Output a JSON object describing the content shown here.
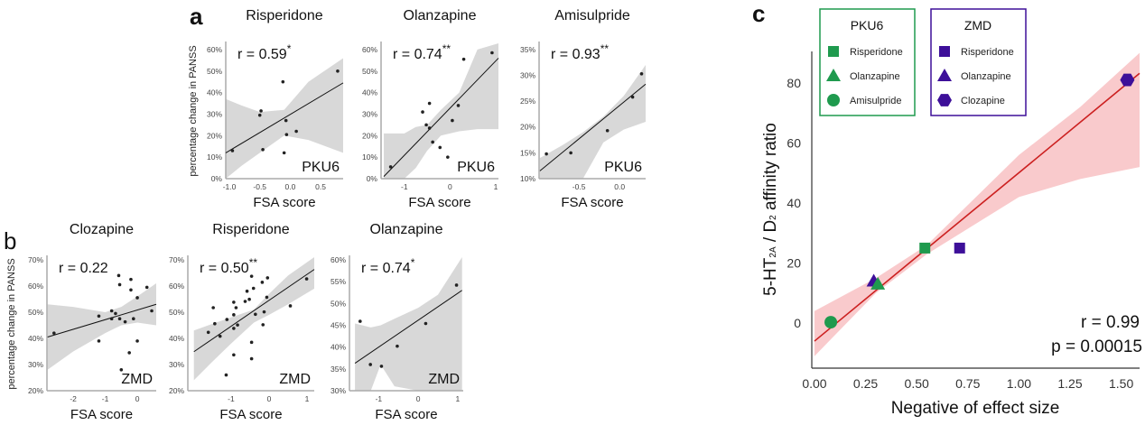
{
  "panel_letters": {
    "a": "a",
    "b": "b",
    "c": "c"
  },
  "shared": {
    "ylabel": "percentage change in PANSS",
    "xlabel": "FSA score"
  },
  "chart_data": [
    {
      "id": "a1",
      "type": "scatter",
      "title": "Risperidone",
      "r_label": "r = 0.59",
      "stars": "*",
      "cohort": "PKU6",
      "xlim": [
        -1.06,
        0.87
      ],
      "ylim": [
        0,
        62.9
      ],
      "xticks": [
        -1,
        -0.5,
        0,
        0.5
      ],
      "xtick_labels": [
        "-1.0",
        "-0.5",
        "0.0",
        "0.5"
      ],
      "yticks": [
        0,
        10,
        20,
        30,
        40,
        50,
        60
      ],
      "ytick_labels": [
        "0%",
        "10%",
        "20%",
        "30%",
        "40%",
        "50%",
        "60%"
      ],
      "points": [
        [
          -0.95,
          13
        ],
        [
          -0.5,
          29.5
        ],
        [
          -0.48,
          31.5
        ],
        [
          -0.45,
          13.5
        ],
        [
          -0.12,
          45
        ],
        [
          -0.07,
          27
        ],
        [
          -0.1,
          12
        ],
        [
          -0.06,
          20.5
        ],
        [
          0.1,
          22
        ],
        [
          0.78,
          50
        ]
      ],
      "fit": [
        [
          -1.06,
          12
        ],
        [
          0.87,
          44.5
        ]
      ],
      "ci_band": [
        [
          -1.06,
          0,
          37
        ],
        [
          -0.8,
          6,
          34
        ],
        [
          -0.5,
          12,
          31
        ],
        [
          -0.1,
          20,
          32
        ],
        [
          0.3,
          18,
          45
        ],
        [
          0.87,
          12,
          56
        ]
      ]
    },
    {
      "id": "a2",
      "type": "scatter",
      "title": "Olanzapine",
      "r_label": "r = 0.74",
      "stars": "**",
      "cohort": "PKU6",
      "xlim": [
        -1.51,
        1.06
      ],
      "ylim": [
        0,
        62.9
      ],
      "xticks": [
        -1,
        0,
        1
      ],
      "xtick_labels": [
        "-1",
        "0",
        "1"
      ],
      "yticks": [
        0,
        10,
        20,
        30,
        40,
        50,
        60
      ],
      "ytick_labels": [
        "0%",
        "10%",
        "20%",
        "30%",
        "40%",
        "50%",
        "60%"
      ],
      "points": [
        [
          -1.3,
          5.5
        ],
        [
          -0.6,
          31
        ],
        [
          -0.45,
          35
        ],
        [
          -0.52,
          25
        ],
        [
          -0.45,
          23.5
        ],
        [
          -0.38,
          17
        ],
        [
          -0.22,
          14.5
        ],
        [
          -0.05,
          10
        ],
        [
          0.05,
          27
        ],
        [
          0.18,
          34
        ],
        [
          0.3,
          55.5
        ],
        [
          0.92,
          58.5
        ]
      ],
      "fit": [
        [
          -1.45,
          1
        ],
        [
          1.06,
          56
        ]
      ],
      "ci_band": [
        [
          -1.45,
          0,
          21
        ],
        [
          -1.0,
          0,
          21
        ],
        [
          -0.75,
          5,
          24
        ],
        [
          -0.5,
          13,
          25
        ],
        [
          -0.2,
          20,
          32
        ],
        [
          0.2,
          22,
          40
        ],
        [
          0.6,
          23,
          60
        ],
        [
          1.06,
          23,
          62.9
        ]
      ]
    },
    {
      "id": "a3",
      "type": "scatter",
      "title": "Amisulpride",
      "r_label": "r = 0.93",
      "stars": "**",
      "cohort": "PKU6",
      "xlim": [
        -0.99,
        0.32
      ],
      "ylim": [
        10,
        36.2
      ],
      "xticks": [
        -0.5,
        0
      ],
      "xtick_labels": [
        "-0.5",
        "0.0"
      ],
      "yticks": [
        10,
        15,
        20,
        25,
        30,
        35
      ],
      "ytick_labels": [
        "10%",
        "15%",
        "20%",
        "25%",
        "30%",
        "35%"
      ],
      "points": [
        [
          -0.9,
          14.8
        ],
        [
          -0.6,
          15
        ],
        [
          -0.15,
          19.3
        ],
        [
          0.16,
          25.8
        ],
        [
          0.27,
          30.3
        ]
      ],
      "fit": [
        [
          -0.98,
          11.5
        ],
        [
          0.32,
          28.3
        ]
      ],
      "ci_band": [
        [
          -0.98,
          10,
          14
        ],
        [
          -0.7,
          10,
          16.5
        ],
        [
          -0.45,
          10,
          19
        ],
        [
          -0.2,
          17,
          22
        ],
        [
          0.05,
          19.5,
          26
        ],
        [
          0.32,
          21,
          32
        ]
      ]
    },
    {
      "id": "b1",
      "type": "scatter",
      "title": "Clozapine",
      "r_label": "r = 0.22",
      "stars": "",
      "cohort": "ZMD",
      "xlim": [
        -2.82,
        0.59
      ],
      "ylim": [
        20,
        71
      ],
      "xticks": [
        -2,
        -1,
        0
      ],
      "xtick_labels": [
        "-2",
        "-1",
        "0"
      ],
      "yticks": [
        20,
        30,
        40,
        50,
        60,
        70
      ],
      "ytick_labels": [
        "20%",
        "30%",
        "40%",
        "50%",
        "60%",
        "70%"
      ],
      "points": [
        [
          -2.6,
          42
        ],
        [
          -1.2,
          48.5
        ],
        [
          -1.2,
          39
        ],
        [
          -0.8,
          50.5
        ],
        [
          -0.8,
          47.5
        ],
        [
          -0.68,
          49.5
        ],
        [
          -0.58,
          64
        ],
        [
          -0.55,
          60.5
        ],
        [
          -0.55,
          47.5
        ],
        [
          -0.5,
          28
        ],
        [
          -0.38,
          46.3
        ],
        [
          -0.25,
          34.5
        ],
        [
          -0.2,
          62.5
        ],
        [
          -0.2,
          58.5
        ],
        [
          -0.12,
          47.5
        ],
        [
          0,
          55.5
        ],
        [
          0,
          39
        ],
        [
          0.3,
          59.5
        ],
        [
          0.45,
          50.5
        ]
      ],
      "fit": [
        [
          -2.8,
          40.5
        ],
        [
          0.59,
          53
        ]
      ],
      "ci_band": [
        [
          -2.8,
          28,
          53
        ],
        [
          -2,
          35,
          52
        ],
        [
          -1,
          42,
          50
        ],
        [
          -0.5,
          45,
          52
        ],
        [
          0,
          46,
          56
        ],
        [
          0.59,
          45,
          61
        ]
      ]
    },
    {
      "id": "b2",
      "type": "scatter",
      "title": "Risperidone",
      "r_label": "r = 0.50",
      "stars": "**",
      "cohort": "ZMD",
      "xlim": [
        -2.14,
        1.19
      ],
      "ylim": [
        20,
        71
      ],
      "xticks": [
        -1,
        0,
        1
      ],
      "xtick_labels": [
        "-1",
        "0",
        "1"
      ],
      "yticks": [
        20,
        30,
        40,
        50,
        60,
        70
      ],
      "ytick_labels": [
        "20%",
        "30%",
        "40%",
        "50%",
        "60%",
        "70%"
      ],
      "points": [
        [
          -1.6,
          42.3
        ],
        [
          -1.47,
          51.7
        ],
        [
          -1.43,
          45.6
        ],
        [
          -1.29,
          40.8
        ],
        [
          -1.11,
          47.2
        ],
        [
          -0.93,
          53.8
        ],
        [
          -0.93,
          49
        ],
        [
          -0.93,
          43.8
        ],
        [
          -0.93,
          33.7
        ],
        [
          -0.87,
          51.7
        ],
        [
          -0.83,
          45.1
        ],
        [
          -1.13,
          26
        ],
        [
          -0.63,
          54.1
        ],
        [
          -0.58,
          58
        ],
        [
          -0.52,
          54.9
        ],
        [
          -0.46,
          63.7
        ],
        [
          -0.41,
          59.1
        ],
        [
          -0.46,
          38.5
        ],
        [
          -0.46,
          32.2
        ],
        [
          -0.36,
          49.2
        ],
        [
          -0.18,
          61.4
        ],
        [
          -0.16,
          45.2
        ],
        [
          -0.13,
          50.1
        ],
        [
          -0.06,
          55.7
        ],
        [
          -0.04,
          63.1
        ],
        [
          0.56,
          52.4
        ],
        [
          0.99,
          62.7
        ]
      ],
      "fit": [
        [
          -1.98,
          34.9
        ],
        [
          1.19,
          66.3
        ]
      ],
      "ci_band": [
        [
          -1.98,
          24,
          43
        ],
        [
          -1.5,
          31,
          45.5
        ],
        [
          -1,
          38,
          48
        ],
        [
          -0.4,
          46,
          51
        ],
        [
          0,
          49,
          57
        ],
        [
          0.5,
          53,
          64
        ],
        [
          1.19,
          59,
          71
        ]
      ]
    },
    {
      "id": "b3",
      "type": "scatter",
      "title": "Olanzapine",
      "r_label": "r = 0.74",
      "stars": "*",
      "cohort": "ZMD",
      "xlim": [
        -1.74,
        1.14
      ],
      "ylim": [
        30,
        60.6
      ],
      "xticks": [
        -1,
        0,
        1
      ],
      "xtick_labels": [
        "-1",
        "0",
        "1"
      ],
      "yticks": [
        30,
        35,
        40,
        45,
        50,
        55,
        60
      ],
      "ytick_labels": [
        "30%",
        "35%",
        "40%",
        "45%",
        "50%",
        "55%",
        "60%"
      ],
      "points": [
        [
          -1.47,
          45.9
        ],
        [
          -1.21,
          36
        ],
        [
          -0.93,
          35.6
        ],
        [
          -0.53,
          40.2
        ],
        [
          0.19,
          45.4
        ],
        [
          0.97,
          54.2
        ]
      ],
      "fit": [
        [
          -1.6,
          36.3
        ],
        [
          1.11,
          53
        ]
      ],
      "ci_band": [
        [
          -1.6,
          30,
          45.4
        ],
        [
          -1.2,
          30,
          44.5
        ],
        [
          -0.95,
          36,
          45
        ],
        [
          -0.6,
          31,
          46.5
        ],
        [
          0,
          30,
          49
        ],
        [
          0.5,
          30,
          52
        ],
        [
          1.11,
          30,
          60.6
        ]
      ]
    },
    {
      "id": "c",
      "type": "scatter",
      "cohort": "",
      "xlabel": "Negative of effect size",
      "ylabel_parts": [
        "5-HT",
        "2A",
        " / D",
        "2",
        "  affinity ratio"
      ],
      "xlim": [
        -0.013,
        1.59
      ],
      "ylim": [
        -15,
        90.5
      ],
      "xticks": [
        0,
        0.25,
        0.5,
        0.75,
        1,
        1.25,
        1.5
      ],
      "xtick_labels": [
        "0.00",
        "0.25",
        "0.50",
        "0.75",
        "1.00",
        "1.25",
        "1.50"
      ],
      "yticks": [
        0,
        20,
        40,
        60,
        80
      ],
      "ytick_labels": [
        "0",
        "20",
        "40",
        "60",
        "80"
      ],
      "r_label": "r = 0.99",
      "p_label": "p = 0.00015",
      "fit": [
        [
          0,
          -6
        ],
        [
          1.59,
          83.2
        ]
      ],
      "ci_band": [
        [
          0,
          -11,
          4
        ],
        [
          0.3,
          10,
          15
        ],
        [
          0.55,
          23,
          26
        ],
        [
          1.0,
          42,
          56
        ],
        [
          1.3,
          48,
          72
        ],
        [
          1.59,
          52,
          90
        ]
      ],
      "colors": {
        "PKU6": "#1f9a4e",
        "ZMD": "#3d0f99",
        "fit": "#cc2020",
        "band": "#f9cacc"
      },
      "legend": [
        {
          "title": "PKU6",
          "items": [
            {
              "label": "Risperidone",
              "marker": "square"
            },
            {
              "label": "Olanzapine",
              "marker": "triangle"
            },
            {
              "label": "Amisulpride",
              "marker": "circle"
            }
          ]
        },
        {
          "title": "ZMD",
          "items": [
            {
              "label": "Risperidone",
              "marker": "square"
            },
            {
              "label": "Olanzapine",
              "marker": "triangle"
            },
            {
              "label": "Clozapine",
              "marker": "hexagon"
            }
          ]
        }
      ],
      "points": [
        {
          "cohort": "ZMD",
          "drug": "Olanzapine",
          "marker": "triangle",
          "x": 0.29,
          "y": 14
        },
        {
          "cohort": "PKU6",
          "drug": "Olanzapine",
          "marker": "triangle",
          "x": 0.31,
          "y": 13
        },
        {
          "cohort": "PKU6",
          "drug": "Amisulpride",
          "marker": "circle",
          "x": 0.08,
          "y": 0.3
        },
        {
          "cohort": "PKU6",
          "drug": "Risperidone",
          "marker": "square",
          "x": 0.54,
          "y": 25
        },
        {
          "cohort": "ZMD",
          "drug": "Risperidone",
          "marker": "square",
          "x": 0.71,
          "y": 25
        },
        {
          "cohort": "ZMD",
          "drug": "Clozapine",
          "marker": "hexagon",
          "x": 1.53,
          "y": 81
        }
      ]
    }
  ]
}
